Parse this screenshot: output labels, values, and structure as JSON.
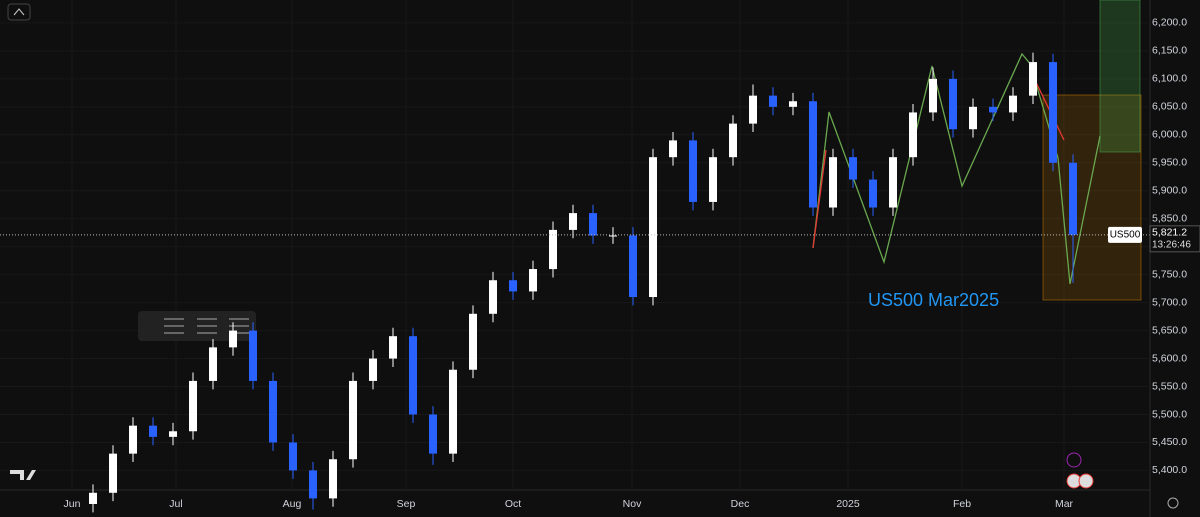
{
  "chart_data": {
    "type": "candlestick",
    "annotation": "US500 Mar2025",
    "symbol": "US500",
    "last_price_label": "5,821.2",
    "countdown": "13:26:46",
    "up_color": "#ffffff",
    "down_color": "#2962ff",
    "open": [
      5340,
      5360,
      5430,
      5480,
      5460,
      5470,
      5560,
      5620,
      5650,
      5560,
      5450,
      5400,
      5350,
      5420,
      5560,
      5600,
      5640,
      5500,
      5430,
      5580,
      5680,
      5740,
      5720,
      5760,
      5830,
      5860,
      5820,
      5820,
      5710,
      5960,
      5990,
      5880,
      5960,
      6020,
      6070,
      6050,
      6060,
      5870,
      5960,
      5920,
      5870,
      5960,
      6040,
      6100,
      6010,
      6050,
      6040,
      6070,
      6130,
      5950
    ],
    "high": [
      5375,
      5445,
      5495,
      5495,
      5485,
      5575,
      5635,
      5665,
      5665,
      5575,
      5465,
      5415,
      5435,
      5575,
      5615,
      5655,
      5655,
      5515,
      5595,
      5695,
      5755,
      5755,
      5775,
      5845,
      5875,
      5875,
      5835,
      5835,
      5975,
      6005,
      6005,
      5975,
      6035,
      6090,
      6085,
      6075,
      6075,
      5975,
      5975,
      5935,
      5975,
      6055,
      6120,
      6115,
      6065,
      6065,
      6085,
      6147,
      6145,
      5965
    ],
    "low": [
      5325,
      5345,
      5415,
      5445,
      5445,
      5455,
      5545,
      5605,
      5545,
      5435,
      5385,
      5330,
      5335,
      5405,
      5545,
      5585,
      5485,
      5410,
      5415,
      5565,
      5665,
      5705,
      5705,
      5745,
      5815,
      5805,
      5805,
      5695,
      5695,
      5945,
      5865,
      5865,
      5945,
      6005,
      6035,
      6035,
      5855,
      5855,
      5905,
      5855,
      5855,
      5945,
      6025,
      5995,
      5995,
      6025,
      6025,
      6055,
      5935,
      5735
    ],
    "close": [
      5360,
      5430,
      5480,
      5460,
      5470,
      5560,
      5620,
      5650,
      5560,
      5450,
      5400,
      5350,
      5420,
      5560,
      5600,
      5640,
      5500,
      5430,
      5580,
      5680,
      5740,
      5720,
      5760,
      5830,
      5860,
      5820,
      5820,
      5710,
      5960,
      5990,
      5880,
      5960,
      6020,
      6070,
      6050,
      6060,
      5870,
      5960,
      5920,
      5870,
      5960,
      6040,
      6100,
      6010,
      6050,
      6040,
      6070,
      6130,
      5950,
      5821.2
    ],
    "xlim": [
      -4.65,
      52.85
    ],
    "xticks": [
      {
        "value": -1.05,
        "label": "Jun"
      },
      {
        "value": 4.15,
        "label": "Jul"
      },
      {
        "value": 9.95,
        "label": "Aug"
      },
      {
        "value": 15.65,
        "label": "Sep"
      },
      {
        "value": 21,
        "label": "Oct"
      },
      {
        "value": 26.95,
        "label": "Nov"
      },
      {
        "value": 32.35,
        "label": "Dec"
      },
      {
        "value": 37.75,
        "label": "2025"
      },
      {
        "value": 43.45,
        "label": "Feb"
      },
      {
        "value": 48.55,
        "label": "Mar"
      }
    ],
    "ylim": [
      5365,
      6241
    ],
    "yticks": [
      {
        "value": 5400,
        "label": "5,400.0"
      },
      {
        "value": 5450,
        "label": "5,450.0"
      },
      {
        "value": 5500,
        "label": "5,500.0"
      },
      {
        "value": 5550,
        "label": "5,550.0"
      },
      {
        "value": 5600,
        "label": "5,600.0"
      },
      {
        "value": 5650,
        "label": "5,650.0"
      },
      {
        "value": 5700,
        "label": "5,700.0"
      },
      {
        "value": 5750,
        "label": "5,750.0"
      },
      {
        "value": 5800,
        "label": "5,800.0"
      },
      {
        "value": 5850,
        "label": "5,850.0"
      },
      {
        "value": 5900,
        "label": "5,900.0"
      },
      {
        "value": 5950,
        "label": "5,950.0"
      },
      {
        "value": 6000,
        "label": "6,000.0"
      },
      {
        "value": 6050,
        "label": "6,050.0"
      },
      {
        "value": 6100,
        "label": "6,100.0"
      },
      {
        "value": 6150,
        "label": "6,150.0"
      },
      {
        "value": 6200,
        "label": "6,200.0"
      }
    ]
  }
}
